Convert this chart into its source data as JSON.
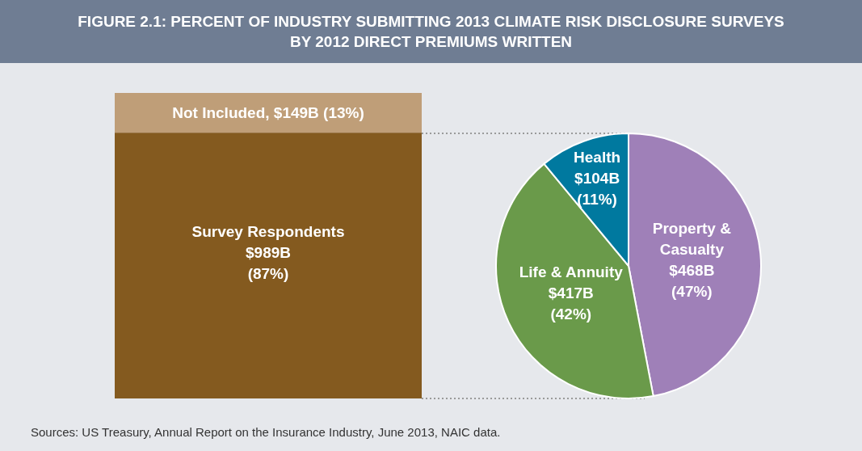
{
  "chart_data": [
    {
      "type": "bar",
      "title": "FIGURE 2.1: PERCENT OF INDUSTRY SUBMITTING 2013 CLIMATE RISK DISCLOSURE SURVEYS\nBY 2012 DIRECT PREMIUMS WRITTEN",
      "stacked": true,
      "categories": [
        null
      ],
      "series": [
        {
          "name": "Survey Respondents\n$989B",
          "color": "#845a1f",
          "values": [
            87
          ],
          "value_labels": [
            "(87%)"
          ]
        },
        {
          "name": "Not Included, $149B",
          "color": "#bf9e78",
          "values": [
            13
          ],
          "value_labels": [
            "(13%)"
          ]
        }
      ],
      "annotations": [
        "Sources: US Treasury, Annual Report on the Insurance Industry, June 2013, NAIC data."
      ]
    },
    {
      "type": "pie",
      "categories": [
        "Property &\nCasualty\n$468B",
        "Life & Annuity\n$417B",
        "Health\n$104B"
      ],
      "values": [
        47,
        42,
        11
      ],
      "colors": [
        "#9f80b8",
        "#6a9a4a",
        "#00799f"
      ],
      "value_labels": [
        "(47%)",
        "(42%)",
        "(11%)"
      ]
    }
  ]
}
